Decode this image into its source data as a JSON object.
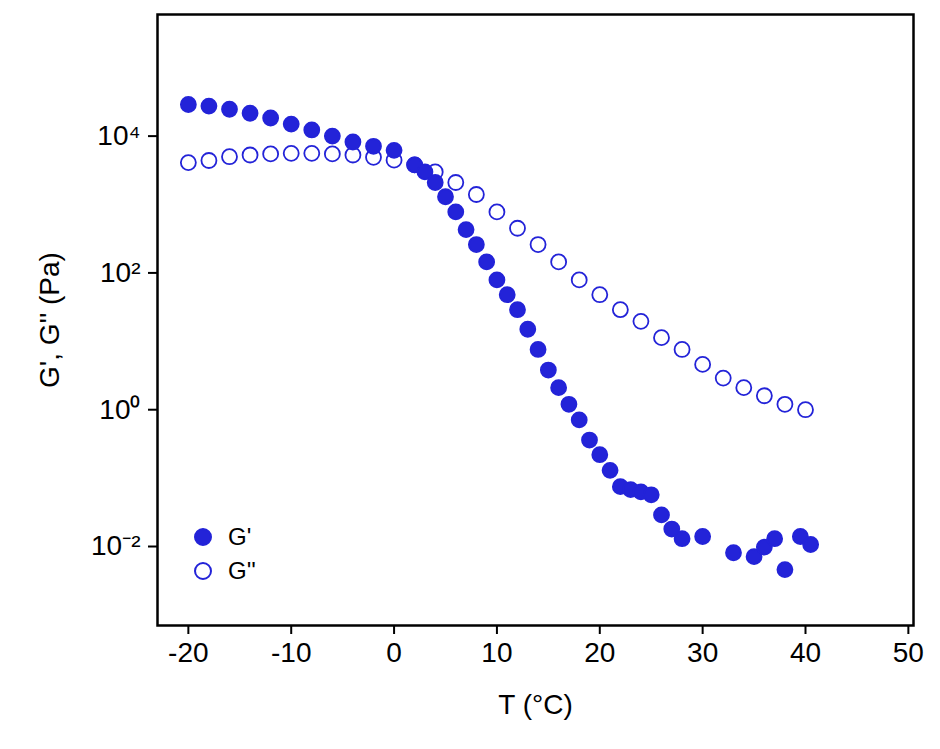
{
  "chart_data": {
    "type": "scatter",
    "x_label": "T (°C)",
    "y_label": "G', G'' (Pa)",
    "log": "y",
    "grid": false,
    "legend": "lower left",
    "xlim": [
      -23,
      50.5
    ],
    "xticks": [
      -20,
      -10,
      0,
      10,
      20,
      30,
      40,
      50
    ],
    "ylim": [
      0.0007,
      600000
    ],
    "yticks": [
      {
        "value": 0.01,
        "label": "10⁻²"
      },
      {
        "value": 1,
        "label": "10⁰"
      },
      {
        "value": 100,
        "label": "10²"
      },
      {
        "value": 10000,
        "label": "10⁴"
      }
    ],
    "series": [
      {
        "name": "G'",
        "color": "#2323d8",
        "marker": "circle",
        "x": [
          -20,
          -18,
          -16,
          -14,
          -12,
          -10,
          -8,
          -6,
          -4,
          -2,
          0,
          2,
          3,
          4,
          5,
          6,
          7,
          8,
          9,
          10,
          11,
          12,
          13,
          14,
          15,
          16,
          17,
          18,
          19,
          20,
          21,
          22,
          23,
          24,
          25,
          26,
          27,
          28,
          30,
          33,
          35,
          36,
          37,
          38,
          39.5,
          40.5
        ],
        "values": [
          29000,
          27500,
          24700,
          21600,
          18400,
          15000,
          12300,
          10000,
          8200,
          7100,
          6200,
          3800,
          3000,
          2100,
          1300,
          780,
          430,
          260,
          145,
          79,
          48,
          29,
          15,
          7.6,
          3.8,
          2.1,
          1.2,
          0.71,
          0.36,
          0.22,
          0.13,
          0.075,
          0.068,
          0.063,
          0.057,
          0.029,
          0.018,
          0.013,
          0.014,
          0.0081,
          0.0071,
          0.0098,
          0.013,
          0.0046,
          0.014,
          0.0107
        ]
      },
      {
        "name": "G''",
        "color": "#2323d8",
        "marker": "open_circle",
        "x": [
          -20,
          -18,
          -16,
          -14,
          -12,
          -10,
          -8,
          -6,
          -4,
          -2,
          0,
          2,
          4,
          6,
          8,
          10,
          12,
          14,
          16,
          18,
          20,
          22,
          24,
          26,
          28,
          30,
          32,
          34,
          36,
          38,
          40
        ],
        "values": [
          4100,
          4400,
          5000,
          5300,
          5500,
          5600,
          5600,
          5500,
          5300,
          4900,
          4450,
          3800,
          3000,
          2100,
          1400,
          780,
          450,
          260,
          145,
          79,
          48,
          29,
          19.6,
          11.3,
          7.6,
          4.6,
          2.9,
          2.1,
          1.6,
          1.2,
          1.0
        ]
      }
    ]
  }
}
